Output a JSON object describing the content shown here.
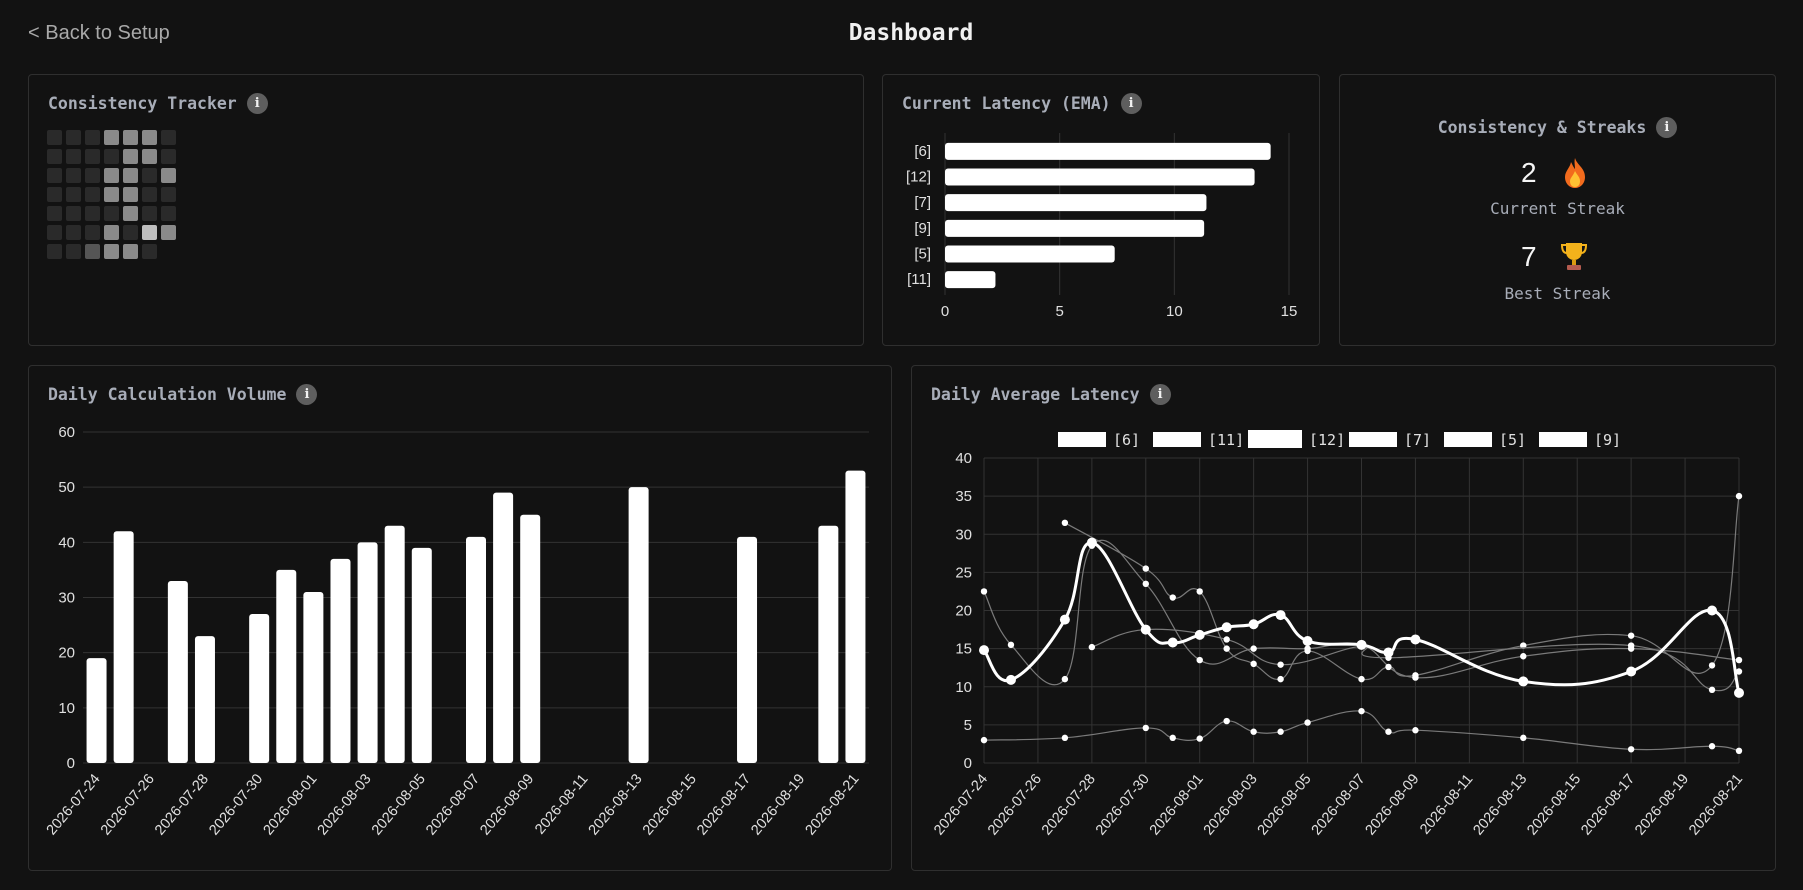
{
  "nav": {
    "back_label": "< Back to Setup",
    "page_title": "Dashboard"
  },
  "colors": {
    "background": "#121212",
    "card_border": "#2f2f2f",
    "bar": "#ffffff",
    "info_icon": "#5e5e5e"
  },
  "consistency_tracker": {
    "title": "Consistency Tracker",
    "info_icon": "info-icon",
    "levels": [
      [
        0,
        0,
        0,
        2,
        2,
        2,
        0
      ],
      [
        0,
        0,
        0,
        0,
        2,
        2,
        0
      ],
      [
        0,
        0,
        0,
        2,
        2,
        0,
        2
      ],
      [
        0,
        0,
        0,
        2,
        2,
        0,
        0
      ],
      [
        0,
        0,
        0,
        0,
        2,
        0,
        0
      ],
      [
        0,
        0,
        0,
        2,
        0,
        3,
        2
      ],
      [
        0,
        0,
        1,
        2,
        2,
        0,
        -1
      ]
    ]
  },
  "current_latency": {
    "title": "Current Latency (EMA)",
    "chart_data": {
      "type": "bar",
      "orientation": "horizontal",
      "categories": [
        "[6]",
        "[12]",
        "[7]",
        "[9]",
        "[5]",
        "[11]"
      ],
      "values": [
        14.2,
        13.5,
        11.4,
        11.3,
        7.4,
        2.2
      ],
      "xlim": [
        0,
        15
      ],
      "xticks": [
        0,
        5,
        10,
        15
      ],
      "grid": true
    }
  },
  "streaks": {
    "title": "Consistency & Streaks",
    "current_value": "2",
    "current_label": "Current Streak",
    "current_icon": "fire-icon",
    "best_value": "7",
    "best_label": "Best Streak",
    "best_icon": "trophy-icon"
  },
  "daily_volume": {
    "title": "Daily Calculation Volume",
    "chart_data": {
      "type": "bar",
      "categories": [
        "2026-07-24",
        "2026-07-25",
        "2026-07-27",
        "2026-07-28",
        "2026-07-30",
        "2026-07-31",
        "2026-08-01",
        "2026-08-02",
        "2026-08-03",
        "2026-08-04",
        "2026-08-05",
        "2026-08-07",
        "2026-08-08",
        "2026-08-09",
        "2026-08-13",
        "2026-08-17",
        "2026-08-20",
        "2026-08-21"
      ],
      "values": [
        19,
        42,
        33,
        23,
        27,
        35,
        31,
        37,
        40,
        43,
        39,
        41,
        49,
        45,
        50,
        41,
        43,
        53
      ],
      "xtick_labels": [
        "2026-07-24",
        "2026-07-26",
        "2026-07-28",
        "2026-07-30",
        "2026-08-01",
        "2026-08-03",
        "2026-08-05",
        "2026-08-07",
        "2026-08-09",
        "2026-08-11",
        "2026-08-13",
        "2026-08-15",
        "2026-08-17",
        "2026-08-19",
        "2026-08-21"
      ],
      "ylim": [
        0,
        60
      ],
      "yticks": [
        0,
        10,
        20,
        30,
        40,
        50,
        60
      ],
      "grid": true
    }
  },
  "daily_latency": {
    "title": "Daily Average Latency",
    "chart_data": {
      "type": "line",
      "legend_position": "top",
      "ylim": [
        0,
        40
      ],
      "yticks": [
        0,
        5,
        10,
        15,
        20,
        25,
        30,
        35,
        40
      ],
      "xtick_labels": [
        "2026-07-24",
        "2026-07-26",
        "2026-07-28",
        "2026-07-30",
        "2026-08-01",
        "2026-08-03",
        "2026-08-05",
        "2026-08-07",
        "2026-08-09",
        "2026-08-11",
        "2026-08-13",
        "2026-08-15",
        "2026-08-17",
        "2026-08-19",
        "2026-08-21"
      ],
      "series": [
        {
          "name": "[6]",
          "points": [
            [
              "2026-07-24",
              22.5
            ],
            [
              "2026-07-25",
              15.5
            ],
            [
              "2026-07-27",
              11
            ],
            [
              "2026-07-28",
              28.5
            ],
            [
              "2026-07-30",
              23.5
            ],
            [
              "2026-08-01",
              13.5
            ],
            [
              "2026-08-03",
              15
            ],
            [
              "2026-08-05",
              15
            ],
            [
              "2026-08-07",
              15.5
            ],
            [
              "2026-08-09",
              11.2
            ],
            [
              "2026-08-13",
              14
            ],
            [
              "2026-08-17",
              15
            ],
            [
              "2026-08-21",
              13.5
            ]
          ]
        },
        {
          "name": "[11]",
          "points": [
            [
              "2026-07-24",
              3
            ],
            [
              "2026-07-27",
              3.3
            ],
            [
              "2026-07-30",
              4.6
            ],
            [
              "2026-07-31",
              3.3
            ],
            [
              "2026-08-01",
              3.2
            ],
            [
              "2026-08-02",
              5.5
            ],
            [
              "2026-08-03",
              4.1
            ],
            [
              "2026-08-04",
              4.1
            ],
            [
              "2026-08-05",
              5.3
            ],
            [
              "2026-08-07",
              6.8
            ],
            [
              "2026-08-08",
              4.1
            ],
            [
              "2026-08-09",
              4.3
            ],
            [
              "2026-08-13",
              3.3
            ],
            [
              "2026-08-17",
              1.8
            ],
            [
              "2026-08-20",
              2.2
            ],
            [
              "2026-08-21",
              1.6
            ]
          ]
        },
        {
          "name": "[12]",
          "points": [
            [
              "2026-07-24",
              14.8
            ],
            [
              "2026-07-25",
              10.9
            ],
            [
              "2026-07-27",
              18.8
            ],
            [
              "2026-07-28",
              28.9
            ],
            [
              "2026-07-30",
              17.5
            ],
            [
              "2026-07-31",
              15.8
            ],
            [
              "2026-08-01",
              16.8
            ],
            [
              "2026-08-02",
              17.8
            ],
            [
              "2026-08-03",
              18.2
            ],
            [
              "2026-08-04",
              19.4
            ],
            [
              "2026-08-05",
              16
            ],
            [
              "2026-08-07",
              15.5
            ],
            [
              "2026-08-08",
              14.5
            ],
            [
              "2026-08-09",
              16.2
            ],
            [
              "2026-08-13",
              10.7
            ],
            [
              "2026-08-17",
              12
            ],
            [
              "2026-08-20",
              20
            ],
            [
              "2026-08-21",
              9.2
            ]
          ]
        },
        {
          "name": "[7]",
          "points": [
            [
              "2026-07-27",
              31.5
            ],
            [
              "2026-07-30",
              25.5
            ],
            [
              "2026-07-31",
              21.7
            ],
            [
              "2026-08-01",
              22.5
            ],
            [
              "2026-08-02",
              15
            ],
            [
              "2026-08-03",
              13
            ],
            [
              "2026-08-04",
              11
            ],
            [
              "2026-08-05",
              14.7
            ],
            [
              "2026-08-07",
              11
            ],
            [
              "2026-08-08",
              12.6
            ],
            [
              "2026-08-09",
              11.5
            ],
            [
              "2026-08-13",
              15.4
            ],
            [
              "2026-08-17",
              16.7
            ],
            [
              "2026-08-20",
              12.8
            ],
            [
              "2026-08-21",
              35
            ]
          ]
        },
        {
          "name": "[5]",
          "points": [
            [
              "2026-07-28",
              15.2
            ],
            [
              "2026-07-30",
              17.5
            ],
            [
              "2026-08-02",
              16.2
            ],
            [
              "2026-08-04",
              12.9
            ],
            [
              "2026-08-07",
              15.3
            ],
            [
              "2026-08-08",
              13.8
            ],
            [
              "2026-08-17",
              15.4
            ],
            [
              "2026-08-20",
              9.6
            ],
            [
              "2026-08-21",
              12
            ]
          ]
        },
        {
          "name": "[9]",
          "points": []
        }
      ]
    }
  }
}
